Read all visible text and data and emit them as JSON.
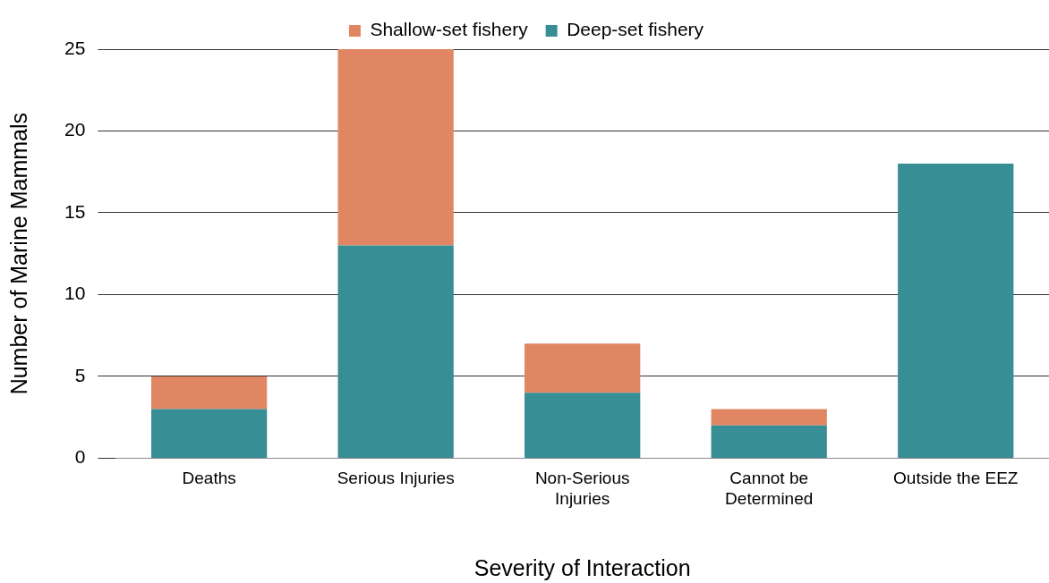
{
  "chart_data": {
    "type": "bar",
    "stacked": true,
    "xlabel": "Severity of Interaction",
    "ylabel": "Number of Marine Mammals",
    "categories": [
      "Deaths",
      "Serious Injuries",
      "Non-Serious Injuries",
      "Cannot be Determined",
      "Outside the EEZ"
    ],
    "series": [
      {
        "name": "Deep-set fishery",
        "color": "#378e94",
        "values": [
          3,
          13,
          4,
          2,
          18
        ]
      },
      {
        "name": "Shallow-set fishery",
        "color": "#e08663",
        "values": [
          2,
          12,
          3,
          1,
          0
        ]
      }
    ],
    "ylim": [
      0,
      25
    ],
    "yticks": [
      0,
      5,
      10,
      15,
      20,
      25
    ],
    "grid": "y",
    "legend": "top"
  }
}
